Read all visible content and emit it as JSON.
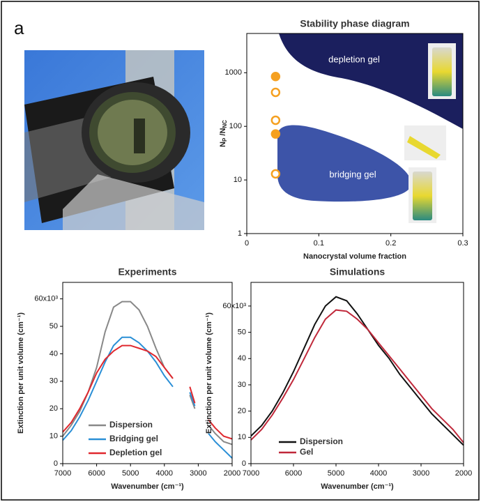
{
  "panel_label": "a",
  "chart_data": [
    {
      "type": "scatter",
      "title": "Stability phase diagram",
      "xlabel": "Nanocrystal volume fraction",
      "ylabel": {
        "base1": "N",
        "sub1": "P",
        "base2": " /N",
        "sub2": "NC"
      },
      "log_y": true,
      "xlim": [
        0,
        0.3
      ],
      "xticks": [
        0,
        0.1,
        0.2,
        0.3
      ],
      "ylim": [
        1,
        5400
      ],
      "yticks": [
        1,
        10,
        100,
        1000
      ],
      "regions": [
        "depletion gel",
        "bridging gel"
      ],
      "series": [
        {
          "color": "#f5a020",
          "filled": true,
          "x": [
            0.04,
            0.04
          ],
          "values": [
            850,
            72
          ]
        },
        {
          "color": "#f5a020",
          "filled": false,
          "x": [
            0.04,
            0.04,
            0.04
          ],
          "values": [
            430,
            130,
            13
          ]
        }
      ]
    },
    {
      "type": "line",
      "title": "Experiments",
      "xlabel": "Wavenumber (cm⁻¹)",
      "ylabel": "Extinction per unit volume (cm⁻¹)",
      "xlim": [
        7000,
        2000
      ],
      "xticks": [
        7000,
        6000,
        5000,
        4000,
        3000,
        2000
      ],
      "ylim": [
        0,
        66
      ],
      "yticks": [
        0,
        10,
        20,
        30,
        40,
        50,
        {
          "value": 60,
          "label": "60x10³"
        }
      ],
      "x": [
        7000,
        6750,
        6500,
        6250,
        6000,
        5750,
        5500,
        5250,
        5000,
        4750,
        4500,
        4250,
        4000,
        3750,
        3500,
        3250,
        3100,
        2900,
        2700,
        2500,
        2250,
        2000
      ],
      "series": [
        {
          "name": "Dispersion",
          "color": "#888888",
          "values": [
            10,
            14,
            19,
            26,
            35,
            48,
            57,
            59,
            59,
            56,
            50,
            42,
            35,
            31,
            null,
            25,
            20,
            null,
            14,
            11,
            8,
            7
          ]
        },
        {
          "name": "Bridging gel",
          "color": "#2a8fd6",
          "values": [
            8.5,
            12,
            17,
            23,
            30,
            37,
            43,
            46,
            46,
            44,
            41,
            37,
            32,
            28,
            null,
            26,
            21,
            null,
            11,
            8,
            5,
            2
          ]
        },
        {
          "name": "Depletion gel",
          "color": "#e0282e",
          "values": [
            11.5,
            15,
            20,
            26,
            33,
            38,
            41,
            43,
            43,
            42,
            41,
            39,
            35,
            31,
            null,
            28,
            22,
            null,
            16,
            13,
            10,
            9
          ]
        }
      ]
    },
    {
      "type": "line",
      "title": "Simulations",
      "xlabel": "Wavenumber (cm⁻¹)",
      "ylabel": "Extinction per unit volume (cm⁻¹)",
      "xlim": [
        7000,
        2000
      ],
      "xticks": [
        7000,
        6000,
        5000,
        4000,
        3000,
        2000
      ],
      "ylim": [
        0,
        69
      ],
      "yticks": [
        0,
        10,
        20,
        30,
        40,
        50,
        {
          "value": 60,
          "label": "60x10³"
        }
      ],
      "x": [
        7000,
        6750,
        6500,
        6250,
        6000,
        5750,
        5500,
        5250,
        5000,
        4750,
        4500,
        4250,
        4000,
        3750,
        3500,
        3250,
        3000,
        2750,
        2500,
        2250,
        2000
      ],
      "series": [
        {
          "name": "Dispersion",
          "color": "#111111",
          "values": [
            10.5,
            14.5,
            20,
            27,
            35,
            44,
            53,
            60,
            63.5,
            62,
            57,
            51,
            45,
            40,
            34,
            29,
            24,
            19,
            15,
            11,
            7
          ]
        },
        {
          "name": "Gel",
          "color": "#c0283a",
          "values": [
            9,
            13,
            18.5,
            25,
            32,
            40,
            48,
            55,
            58.5,
            58,
            55,
            51,
            46,
            41,
            36,
            31,
            26,
            21,
            17,
            13,
            8
          ]
        }
      ]
    }
  ]
}
